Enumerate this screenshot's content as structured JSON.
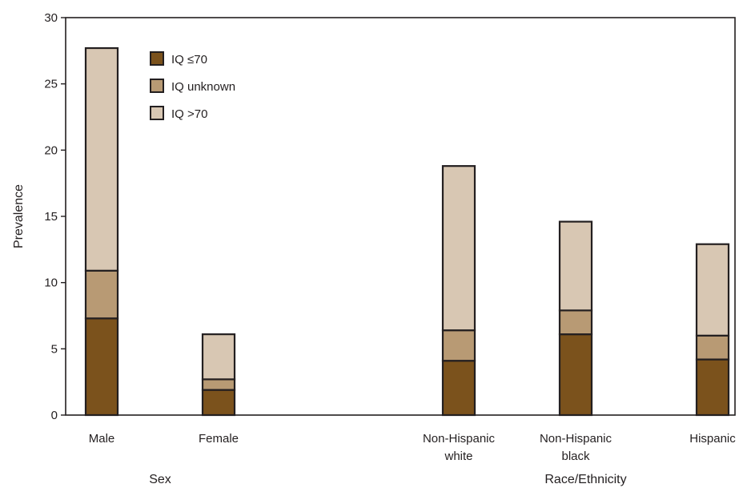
{
  "chart_data": {
    "type": "bar",
    "stacked": true,
    "title": "",
    "ylabel": "Prevalence",
    "xlabel": "",
    "ylim": [
      0,
      30
    ],
    "yticks": [
      0,
      5,
      10,
      15,
      20,
      25,
      30
    ],
    "grid": false,
    "legend_position": "top-left",
    "categories": [
      [
        "Male"
      ],
      [
        "Female"
      ],
      [
        "Non-Hispanic",
        "white"
      ],
      [
        "Non-Hispanic",
        "black"
      ],
      [
        "Hispanic"
      ]
    ],
    "groups": [
      {
        "label": "Sex",
        "categories": [
          0,
          1
        ]
      },
      {
        "label": "Race/Ethnicity",
        "categories": [
          2,
          3,
          4
        ]
      }
    ],
    "series": [
      {
        "name": "IQ ≤70",
        "color": "#7b521c",
        "values": [
          7.3,
          1.9,
          4.1,
          6.1,
          4.2
        ]
      },
      {
        "name": "IQ unknown",
        "color": "#b89a74",
        "values": [
          3.6,
          0.8,
          2.3,
          1.8,
          1.8
        ]
      },
      {
        "name": "IQ >70",
        "color": "#d8c7b3",
        "values": [
          16.8,
          3.4,
          12.4,
          6.7,
          6.9
        ]
      }
    ]
  }
}
